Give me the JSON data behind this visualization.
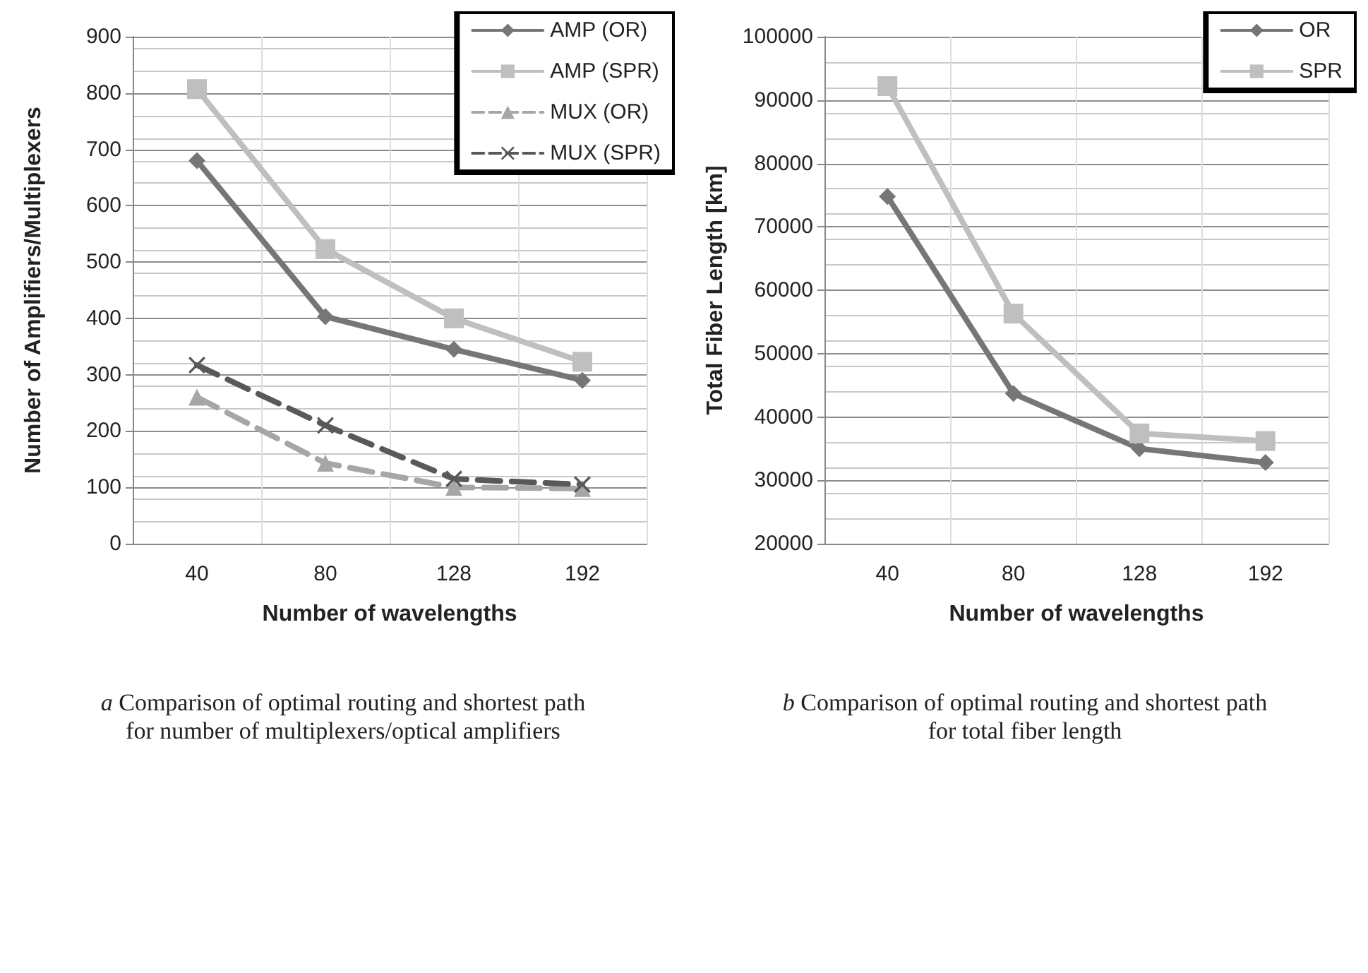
{
  "chart_data": [
    {
      "type": "line",
      "xlabel": "Number of wavelengths",
      "ylabel": "Number of Amplifiers/Multiplexers",
      "categories": [
        "40",
        "80",
        "128",
        "192"
      ],
      "ylim": [
        0,
        900
      ],
      "yticks": [
        0,
        100,
        200,
        300,
        400,
        500,
        600,
        700,
        800,
        900
      ],
      "grid": true,
      "legend": "top right",
      "annotations": [
        "a Comparison of optimal routing and shortest path for number of multiplexers/optical amplifiers"
      ],
      "series": [
        {
          "name": "AMP (OR)",
          "color": "#767676",
          "marker": "diamond",
          "line_style": "solid",
          "values": [
            680,
            403,
            345,
            290
          ]
        },
        {
          "name": "AMP (SPR)",
          "color": "#bfbfbf",
          "marker": "square",
          "line_style": "solid",
          "values": [
            807,
            523,
            400,
            323
          ]
        },
        {
          "name": "MUX (OR)",
          "color": "#a6a6a6",
          "marker": "triangle",
          "line_style": "dashed",
          "values": [
            260,
            143,
            100,
            98
          ]
        },
        {
          "name": "MUX (SPR)",
          "color": "#595959",
          "marker": "cross",
          "line_style": "dashed",
          "values": [
            317,
            210,
            115,
            105
          ]
        }
      ]
    },
    {
      "type": "line",
      "xlabel": "Number of wavelengths",
      "ylabel": "Total Fiber Length [km]",
      "categories": [
        "40",
        "80",
        "128",
        "192"
      ],
      "ylim": [
        20000,
        100000
      ],
      "yticks": [
        20000,
        30000,
        40000,
        50000,
        60000,
        70000,
        80000,
        90000,
        100000
      ],
      "grid": true,
      "legend": "top right",
      "annotations": [
        "b Comparison of optimal routing and shortest path for total fiber length"
      ],
      "series": [
        {
          "name": "OR",
          "color": "#767676",
          "marker": "diamond",
          "line_style": "solid",
          "values": [
            74800,
            43700,
            35000,
            32800
          ]
        },
        {
          "name": "SPR",
          "color": "#bfbfbf",
          "marker": "square",
          "line_style": "solid",
          "values": [
            92200,
            56300,
            37400,
            36200
          ]
        }
      ]
    }
  ]
}
